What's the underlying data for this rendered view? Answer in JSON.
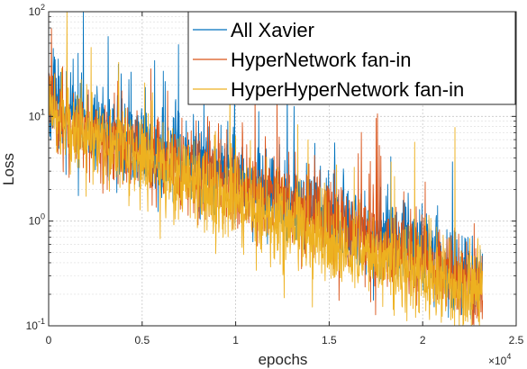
{
  "chart_data": {
    "type": "line",
    "xlabel": "epochs",
    "ylabel": "Loss",
    "x_scale_exponent": "4",
    "x_multiplier_base": "×10",
    "xlim": [
      0,
      25000
    ],
    "ylim": [
      0.1,
      100
    ],
    "y_scale": "log",
    "grid": true,
    "minor_grid": true,
    "legend_position": "top-right",
    "x_tick_labels": [
      "0",
      "0.5",
      "1",
      "1.5",
      "2",
      "2.5"
    ],
    "x_tick_values": [
      0,
      5000,
      10000,
      15000,
      20000,
      25000
    ],
    "y_tick_values": [
      0.1,
      1,
      10,
      100
    ],
    "y_tick_labels": [
      {
        "base": "10",
        "exp": "-1"
      },
      {
        "base": "10",
        "exp": "0"
      },
      {
        "base": "10",
        "exp": "1"
      },
      {
        "base": "10",
        "exp": "2"
      }
    ],
    "x_end": 23200,
    "series": [
      {
        "name": "All Xavier",
        "color": "#0072BD",
        "x": [
          0,
          500,
          1000,
          2000,
          3000,
          4000,
          5000,
          6000,
          7000,
          8000,
          9000,
          10000,
          11000,
          12000,
          13000,
          14000,
          15000,
          16000,
          17000,
          18000,
          19000,
          20000,
          21000,
          22000,
          23200
        ],
        "y": [
          18,
          13,
          10,
          8,
          6.6,
          5.8,
          4.9,
          4.3,
          3.7,
          3.3,
          2.8,
          2.45,
          2.1,
          1.8,
          1.55,
          1.3,
          1.12,
          0.95,
          0.8,
          0.68,
          0.57,
          0.47,
          0.39,
          0.32,
          0.25
        ],
        "noise": 0.2
      },
      {
        "name": "HyperNetwork fan-in",
        "color": "#D95319",
        "x": [
          0,
          500,
          1000,
          2000,
          3000,
          4000,
          5000,
          6000,
          7000,
          8000,
          9000,
          10000,
          11000,
          12000,
          13000,
          14000,
          15000,
          16000,
          17000,
          18000,
          19000,
          20000,
          21000,
          22000,
          23200
        ],
        "y": [
          16,
          11,
          8.5,
          7,
          5.8,
          5,
          4.3,
          3.6,
          3.1,
          2.8,
          2.5,
          2.2,
          1.9,
          1.6,
          1.35,
          1.15,
          0.97,
          0.82,
          0.68,
          0.57,
          0.48,
          0.4,
          0.34,
          0.28,
          0.23
        ],
        "noise": 0.2
      },
      {
        "name": "HyperHyperNetwork fan-in",
        "color": "#EDB120",
        "x": [
          0,
          500,
          1000,
          2000,
          3000,
          4000,
          5000,
          6000,
          7000,
          8000,
          9000,
          10000,
          11000,
          12000,
          13000,
          14000,
          15000,
          16000,
          17000,
          18000,
          19000,
          20000,
          21000,
          22000,
          23200
        ],
        "y": [
          14,
          10,
          8,
          6.5,
          5.5,
          4.7,
          3.8,
          3.1,
          2.55,
          2.1,
          1.75,
          1.45,
          1.2,
          1.0,
          0.85,
          0.72,
          0.61,
          0.52,
          0.45,
          0.4,
          0.35,
          0.31,
          0.27,
          0.24,
          0.21
        ],
        "noise": 0.2
      }
    ]
  }
}
